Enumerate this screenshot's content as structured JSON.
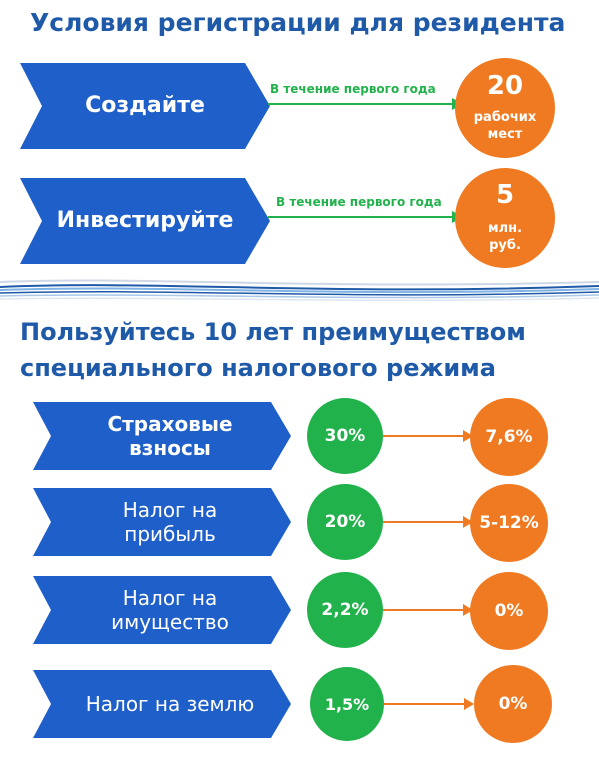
{
  "colors": {
    "title": "#1f5aa8",
    "chevron": "#1f5fc9",
    "green": "#22b24c",
    "orange": "#f07a22"
  },
  "section1": {
    "title": "Условия регистрации для резидента",
    "conditions": [
      {
        "action": "Создайте",
        "period": "В течение первого года",
        "value": "20",
        "unit_line1": "рабочих",
        "unit_line2": "мест"
      },
      {
        "action": "Инвестируйте",
        "period": "В течение первого года",
        "value": "5",
        "unit_line1": "млн.",
        "unit_line2": "руб."
      }
    ]
  },
  "section2": {
    "title_line1": "Пользуйтесь 10 лет преимуществом",
    "title_line2": "специального налогового режима",
    "taxes": [
      {
        "name_line1": "Страховые",
        "name_line2": "взносы",
        "from": "30%",
        "to": "7,6%"
      },
      {
        "name_line1": "Налог на",
        "name_line2": "прибыль",
        "from": "20%",
        "to": "5-12%"
      },
      {
        "name_line1": "Налог на",
        "name_line2": "имущество",
        "from": "2,2%",
        "to": "0%"
      },
      {
        "name_line1": "Налог на землю",
        "name_line2": "",
        "from": "1,5%",
        "to": "0%"
      }
    ]
  }
}
